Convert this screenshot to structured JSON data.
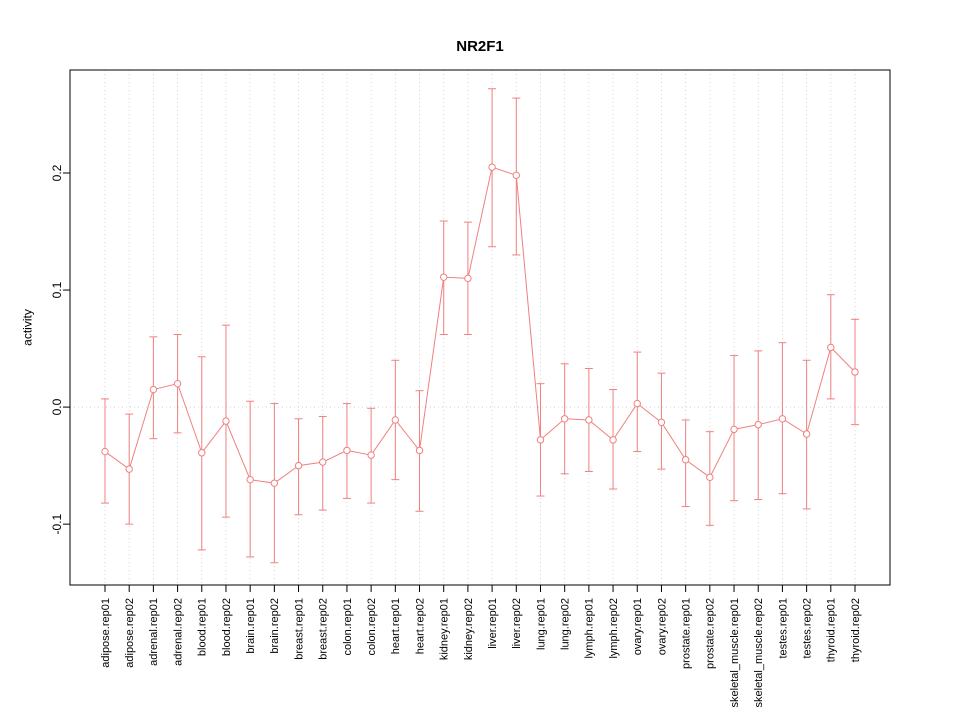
{
  "chart_data": {
    "type": "line",
    "title": "NR2F1",
    "xlabel": "",
    "ylabel": "activity",
    "ylim": [
      -0.152,
      0.288
    ],
    "yticks": [
      -0.1,
      0.0,
      0.1,
      0.2
    ],
    "legend": "none",
    "grid": {
      "vertical_per_category": "dotted",
      "zero_line": "dotted"
    },
    "series_color": "#f08080",
    "grid_color": "#d3d3d3",
    "marker": "open-circle",
    "error_bars": "caps",
    "categories": [
      "adipose.rep01",
      "adipose.rep02",
      "adrenal.rep01",
      "adrenal.rep02",
      "blood.rep01",
      "blood.rep02",
      "brain.rep01",
      "brain.rep02",
      "breast.rep01",
      "breast.rep02",
      "colon.rep01",
      "colon.rep02",
      "heart.rep01",
      "heart.rep02",
      "kidney.rep01",
      "kidney.rep02",
      "liver.rep01",
      "liver.rep02",
      "lung.rep01",
      "lung.rep02",
      "lymph.rep01",
      "lymph.rep02",
      "ovary.rep01",
      "ovary.rep02",
      "prostate.rep01",
      "prostate.rep02",
      "skeletal_muscle.rep01",
      "skeletal_muscle.rep02",
      "testes.rep01",
      "testes.rep02",
      "thyroid.rep01",
      "thyroid.rep02"
    ],
    "values": [
      -0.038,
      -0.053,
      0.015,
      0.02,
      -0.039,
      -0.012,
      -0.062,
      -0.065,
      -0.05,
      -0.047,
      -0.037,
      -0.041,
      -0.011,
      -0.037,
      0.111,
      0.11,
      0.205,
      0.198,
      -0.028,
      -0.01,
      -0.011,
      -0.028,
      0.003,
      -0.013,
      -0.045,
      -0.06,
      -0.019,
      -0.015,
      -0.01,
      -0.023,
      0.051,
      0.03
    ],
    "lower": [
      -0.082,
      -0.1,
      -0.027,
      -0.022,
      -0.122,
      -0.094,
      -0.128,
      -0.133,
      -0.092,
      -0.088,
      -0.078,
      -0.082,
      -0.062,
      -0.089,
      0.062,
      0.062,
      0.137,
      0.13,
      -0.076,
      -0.057,
      -0.055,
      -0.07,
      -0.038,
      -0.053,
      -0.085,
      -0.101,
      -0.08,
      -0.079,
      -0.074,
      -0.087,
      0.007,
      -0.015
    ],
    "upper": [
      0.007,
      -0.006,
      0.06,
      0.062,
      0.043,
      0.07,
      0.005,
      0.003,
      -0.01,
      -0.008,
      0.003,
      -0.001,
      0.04,
      0.014,
      0.159,
      0.158,
      0.272,
      0.264,
      0.02,
      0.037,
      0.033,
      0.015,
      0.047,
      0.029,
      -0.011,
      -0.021,
      0.044,
      0.048,
      0.055,
      0.04,
      0.096,
      0.075
    ]
  }
}
